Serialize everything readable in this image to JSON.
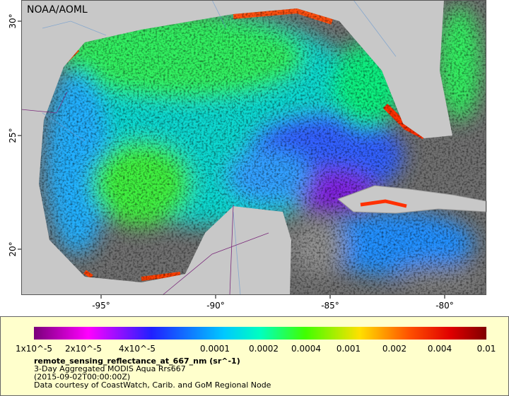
{
  "map": {
    "watermark": "NOAA/AOML",
    "x_labels": [
      "-95°",
      "-90°",
      "-85°",
      "-80°"
    ],
    "y_labels": [
      "30°",
      "25°",
      "20°"
    ]
  },
  "colorbar": {
    "labels": [
      "1x10^-5",
      "2x10^-5",
      "4x10^-5",
      "0.0001",
      "0.0002",
      "0.0004",
      "0.001",
      "0.002",
      "0.004",
      "0.01"
    ]
  },
  "caption": {
    "title": "remote_sensing_reflectance_at_667_nm (sr^-1)",
    "lines": [
      "3-Day Aggregated MODIS Aqua Rrs667",
      "(2015-09-02T00:00:00Z)",
      "Data courtesy of CoastWatch, Carib. and GoM Regional Node"
    ]
  }
}
